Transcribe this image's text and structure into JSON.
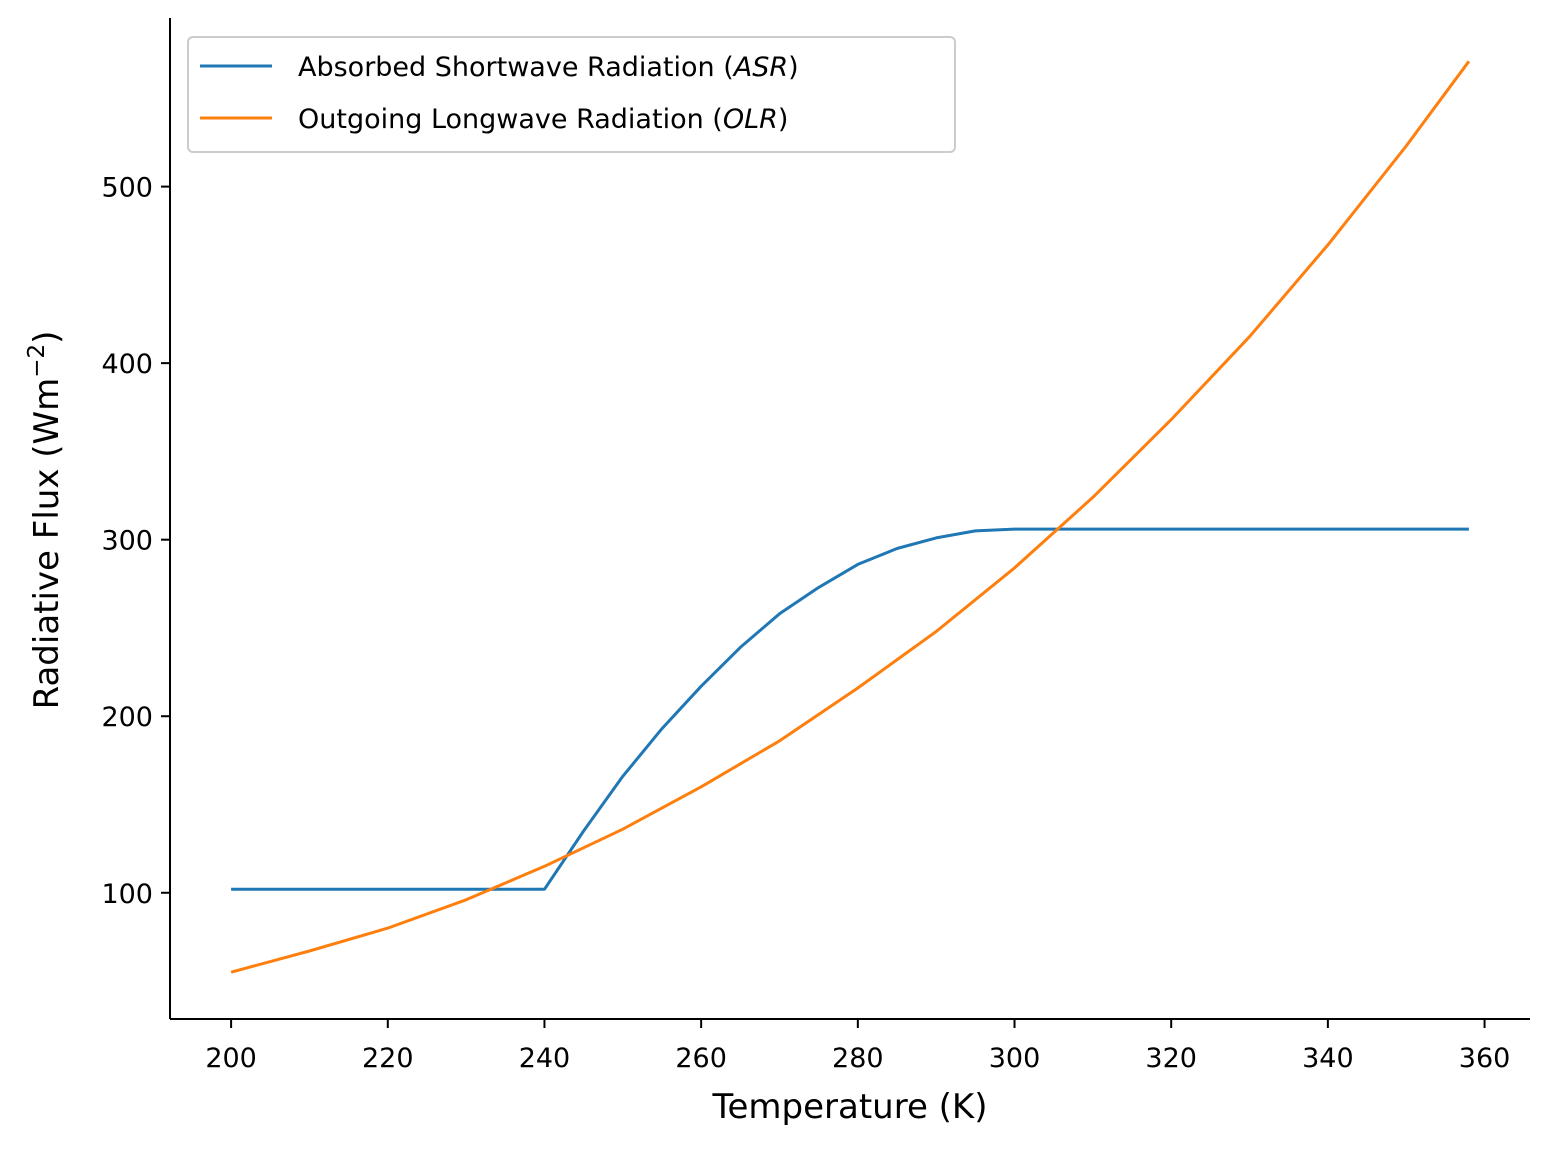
{
  "chart_data": {
    "type": "line",
    "xlabel": "Temperature (K)",
    "ylabel": "Radiative Flux (Wm",
    "ylabel_sup": "−2",
    "ylabel_close": ")",
    "xlim": [
      192.2,
      365.8
    ],
    "ylim": [
      28.5,
      595.5
    ],
    "xticks": [
      200,
      220,
      240,
      260,
      280,
      300,
      320,
      340,
      360
    ],
    "yticks": [
      100,
      200,
      300,
      400,
      500
    ],
    "grid": false,
    "legend_position": "top-left",
    "series": [
      {
        "name": "Absorbed Shortwave Radiation (ASR)",
        "legend_prefix": "Absorbed Shortwave Radiation (",
        "legend_italic": "ASR",
        "legend_suffix": ")",
        "color": "#1f77b4",
        "x": [
          200,
          210,
          220,
          230,
          240,
          245,
          250,
          255,
          260,
          265,
          270,
          275,
          280,
          285,
          290,
          295,
          300,
          310,
          320,
          330,
          340,
          350,
          358
        ],
        "y": [
          102,
          102,
          102,
          102,
          102,
          135,
          166,
          193,
          217,
          239,
          258,
          273,
          286,
          295,
          301,
          305,
          306,
          306,
          306,
          306,
          306,
          306,
          306
        ]
      },
      {
        "name": "Outgoing Longwave Radiation (OLR)",
        "legend_prefix": "Outgoing Longwave Radiation (",
        "legend_italic": "OLR",
        "legend_suffix": ")",
        "color": "#ff7f0e",
        "x": [
          200,
          210,
          220,
          230,
          240,
          250,
          260,
          270,
          280,
          290,
          300,
          310,
          320,
          330,
          340,
          350,
          358
        ],
        "y": [
          55,
          67,
          80,
          96,
          115,
          136,
          160,
          186,
          216,
          248,
          284,
          324,
          368,
          415,
          467,
          523,
          571
        ]
      }
    ]
  }
}
